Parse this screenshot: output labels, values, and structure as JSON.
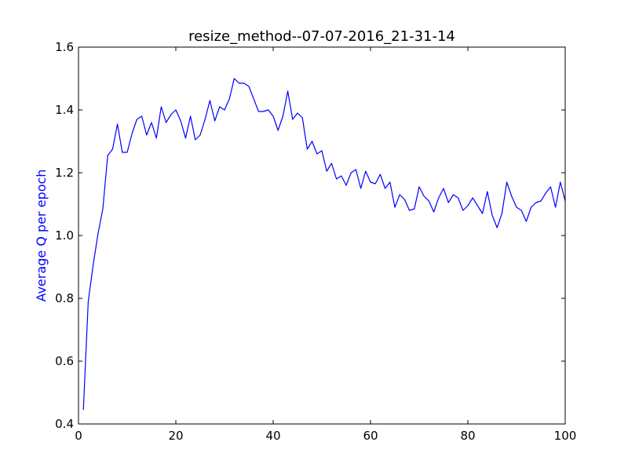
{
  "chart_data": {
    "type": "line",
    "title": "resize_method--07-07-2016_21-31-14",
    "xlabel": "",
    "ylabel": "Average Q per epoch",
    "xlim": [
      0,
      100
    ],
    "ylim": [
      0.4,
      1.6
    ],
    "x_ticks": [
      "0",
      "20",
      "40",
      "60",
      "80",
      "100"
    ],
    "y_ticks": [
      "0.4",
      "0.6",
      "0.8",
      "1.0",
      "1.2",
      "1.4",
      "1.6"
    ],
    "grid": false,
    "legend": "none",
    "line_color": "#0000ff",
    "ylabel_color": "#0000ff",
    "series": [
      {
        "x": [
          1,
          2,
          3,
          4,
          5,
          6,
          7,
          8,
          9,
          10,
          11,
          12,
          13,
          14,
          15,
          16,
          17,
          18,
          19,
          20,
          21,
          22,
          23,
          24,
          25,
          26,
          27,
          28,
          29,
          30,
          31,
          32,
          33,
          34,
          35,
          36,
          37,
          38,
          39,
          40,
          41,
          42,
          43,
          44,
          45,
          46,
          47,
          48,
          49,
          50,
          51,
          52,
          53,
          54,
          55,
          56,
          57,
          58,
          59,
          60,
          61,
          62,
          63,
          64,
          65,
          66,
          67,
          68,
          69,
          70,
          71,
          72,
          73,
          74,
          75,
          76,
          77,
          78,
          79,
          80,
          81,
          82,
          83,
          84,
          85,
          86,
          87,
          88,
          89,
          90,
          91,
          92,
          93,
          94,
          95,
          96,
          97,
          98,
          99,
          100
        ],
        "values": [
          0.445,
          0.79,
          0.905,
          1.005,
          1.085,
          1.255,
          1.275,
          1.355,
          1.265,
          1.265,
          1.325,
          1.37,
          1.38,
          1.32,
          1.36,
          1.31,
          1.41,
          1.36,
          1.385,
          1.4,
          1.365,
          1.31,
          1.38,
          1.305,
          1.32,
          1.37,
          1.43,
          1.365,
          1.41,
          1.4,
          1.435,
          1.5,
          1.485,
          1.485,
          1.475,
          1.435,
          1.395,
          1.395,
          1.4,
          1.38,
          1.335,
          1.38,
          1.46,
          1.37,
          1.39,
          1.375,
          1.275,
          1.3,
          1.26,
          1.27,
          1.205,
          1.23,
          1.18,
          1.19,
          1.16,
          1.2,
          1.21,
          1.15,
          1.205,
          1.17,
          1.165,
          1.195,
          1.15,
          1.17,
          1.09,
          1.13,
          1.115,
          1.08,
          1.085,
          1.155,
          1.125,
          1.11,
          1.075,
          1.12,
          1.15,
          1.105,
          1.13,
          1.12,
          1.08,
          1.095,
          1.12,
          1.095,
          1.07,
          1.14,
          1.065,
          1.025,
          1.07,
          1.17,
          1.125,
          1.09,
          1.08,
          1.045,
          1.09,
          1.105,
          1.11,
          1.135,
          1.155,
          1.09,
          1.17,
          1.11
        ]
      }
    ]
  }
}
